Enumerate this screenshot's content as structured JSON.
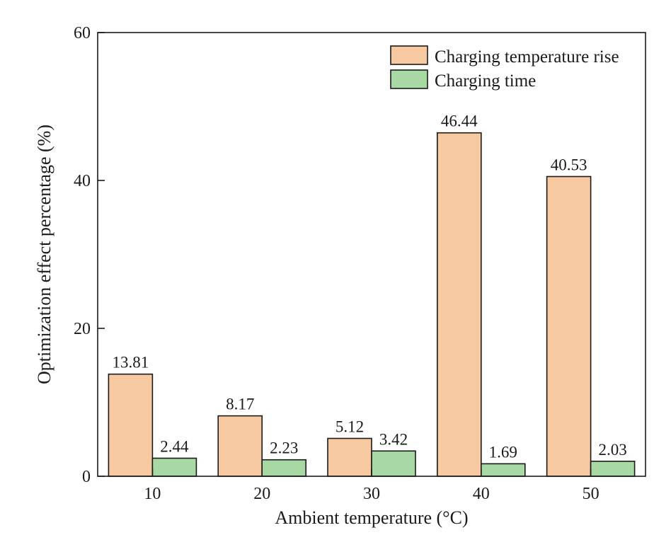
{
  "chart_data": {
    "type": "bar",
    "title": "",
    "xlabel": "Ambient temperature (°C)",
    "ylabel": "Optimization effect percentage (%)",
    "ylim": [
      0,
      60
    ],
    "yticks": [
      0,
      20,
      40,
      60
    ],
    "categories": [
      "10",
      "20",
      "30",
      "40",
      "50"
    ],
    "series": [
      {
        "name": "Charging temperature rise",
        "color": "#f7c9a0",
        "values": [
          13.81,
          8.17,
          5.12,
          46.44,
          40.53
        ],
        "labels": [
          "13.81",
          "8.17",
          "5.12",
          "46.44",
          "40.53"
        ]
      },
      {
        "name": "Charging time",
        "color": "#a8d8a4",
        "values": [
          2.44,
          2.23,
          3.42,
          1.69,
          2.03
        ],
        "labels": [
          "2.44",
          "2.23",
          "3.42",
          "1.69",
          "2.03"
        ]
      }
    ],
    "legend": "top-right",
    "grid": false
  }
}
